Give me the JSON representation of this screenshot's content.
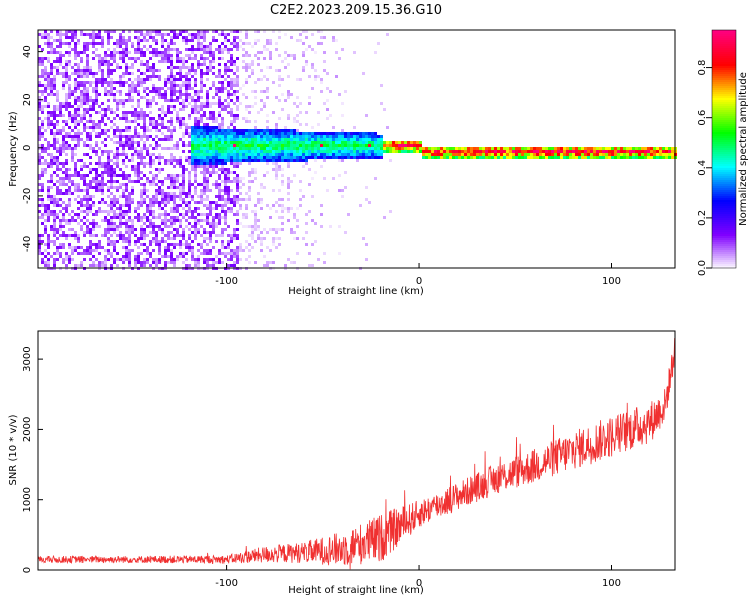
{
  "figure_title": "C2E2.2023.209.15.36.G10",
  "chart_data": [
    {
      "type": "heatmap",
      "title": "C2E2.2023.209.15.36.G10",
      "xlabel": "Height of straight line (km)",
      "ylabel": "Frequency (Hz)",
      "xlim": [
        -198,
        133
      ],
      "ylim": [
        -50,
        49
      ],
      "x_ticks": [
        -100,
        0,
        100
      ],
      "y_ticks": [
        -40,
        -20,
        0,
        20,
        40
      ],
      "colorbar": {
        "label": "Normalized spectral amplitude",
        "range": [
          0.0,
          0.95
        ],
        "ticks": [
          0.0,
          0.2,
          0.4,
          0.6,
          0.8
        ],
        "tick_labels": [
          "0.0",
          "0.2",
          "0.4",
          "0.6",
          "0.8"
        ],
        "colors": [
          "#ffffff",
          "#8000ff",
          "#0000ff",
          "#00ffff",
          "#00ff00",
          "#ffff00",
          "#ff0000",
          "#ff0080"
        ]
      },
      "features": [
        {
          "label": "noise region (scattered violet)",
          "x_range": [
            -198,
            -95
          ],
          "y_range": [
            -50,
            49
          ],
          "amplitude": 0.1
        },
        {
          "label": "sparse noise",
          "x_range": [
            -95,
            -40
          ],
          "y_range": [
            -50,
            49
          ],
          "amplitude": 0.03
        },
        {
          "label": "main signal band",
          "x_range": [
            -120,
            133
          ],
          "center_freq": 0,
          "width_hz": 4,
          "amplitude": 0.7
        }
      ]
    },
    {
      "type": "line",
      "xlabel": "Height of straight line (km)",
      "ylabel": "SNR (10 * v/v)",
      "xlim": [
        -198,
        133
      ],
      "ylim": [
        0,
        3400
      ],
      "x_ticks": [
        -100,
        0,
        100
      ],
      "y_ticks": [
        0,
        1000,
        2000,
        3000
      ],
      "line_color": "#f03030",
      "series_trend": {
        "x": [
          -198,
          -150,
          -100,
          -80,
          -60,
          -40,
          -20,
          0,
          20,
          40,
          60,
          80,
          100,
          120,
          128,
          133
        ],
        "y": [
          150,
          150,
          150,
          220,
          250,
          300,
          450,
          800,
          1050,
          1300,
          1480,
          1700,
          1900,
          2100,
          2350,
          3150
        ],
        "noise_amplitude": [
          50,
          50,
          60,
          120,
          150,
          250,
          350,
          200,
          200,
          220,
          250,
          280,
          300,
          300,
          250,
          200
        ]
      }
    }
  ]
}
